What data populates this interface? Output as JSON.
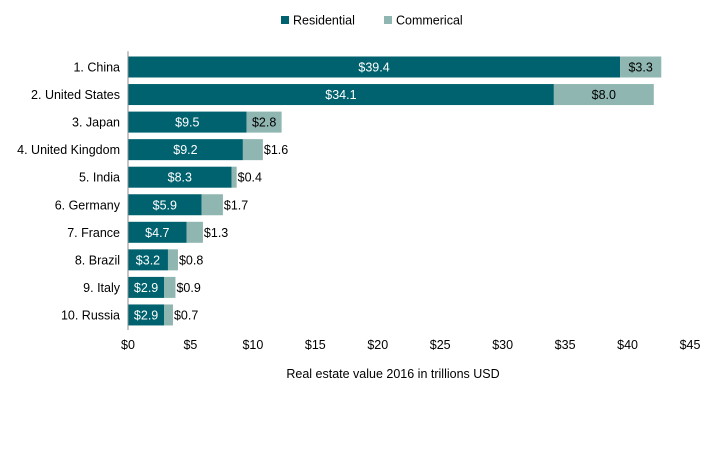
{
  "chart_data": {
    "type": "bar",
    "orientation": "horizontal",
    "stacked": true,
    "categories": [
      "1. China",
      "2. United States",
      "3. Japan",
      "4. United Kingdom",
      "5. India",
      "6. Germany",
      "7. France",
      "8. Brazil",
      "9. Italy",
      "10. Russia"
    ],
    "series": [
      {
        "name": "Residential",
        "color": "#00626E",
        "values": [
          39.4,
          34.1,
          9.5,
          9.2,
          8.3,
          5.9,
          4.7,
          3.2,
          2.9,
          2.9
        ],
        "labels": [
          "$39.4",
          "$34.1",
          "$9.5",
          "$9.2",
          "$8.3",
          "$5.9",
          "$4.7",
          "$3.2",
          "$2.9",
          "$2.9"
        ]
      },
      {
        "name": "Commerical",
        "color": "#8FB6B1",
        "values": [
          3.3,
          8.0,
          2.8,
          1.6,
          0.4,
          1.7,
          1.3,
          0.8,
          0.9,
          0.7
        ],
        "labels": [
          "$3.3",
          "$8.0",
          "$2.8",
          "$1.6",
          "$0.4",
          "$1.7",
          "$1.3",
          "$0.8",
          "$0.9",
          "$0.7"
        ]
      }
    ],
    "xlabel": "Real estate value 2016 in trillions USD",
    "xlim": [
      0,
      45
    ],
    "xticks": [
      0,
      5,
      10,
      15,
      20,
      25,
      30,
      35,
      40,
      45
    ],
    "xtick_labels": [
      "$0",
      "$5",
      "$10",
      "$15",
      "$20",
      "$25",
      "$30",
      "$35",
      "$40",
      "$45"
    ],
    "legend_position": "top-center",
    "grid": false
  }
}
